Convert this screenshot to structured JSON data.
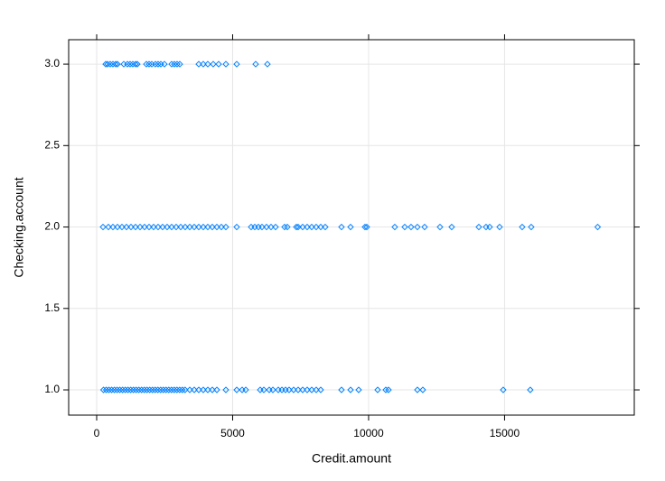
{
  "chart_data": {
    "type": "scatter",
    "xlabel": "Credit.amount",
    "ylabel": "Checking.account",
    "xlim": [
      -1030,
      19770
    ],
    "ylim": [
      0.845,
      3.15
    ],
    "xticks": [
      0,
      5000,
      10000,
      15000
    ],
    "yticks": [
      {
        "value": 1,
        "label": "1.0"
      },
      {
        "value": 1.5,
        "label": "1.5"
      },
      {
        "value": 2,
        "label": "2.0"
      },
      {
        "value": 2.5,
        "label": "2.5"
      },
      {
        "value": 3,
        "label": "3.0"
      }
    ],
    "grid": true,
    "series": [
      {
        "color": "#0080ff",
        "x": [
          250,
          350,
          450,
          550,
          650,
          750,
          850,
          950,
          1050,
          1150,
          1250,
          1350,
          1450,
          1550,
          1650,
          1750,
          1850,
          1950,
          2050,
          2150,
          2250,
          2350,
          2450,
          2550,
          2650,
          2750,
          2850,
          2950,
          3050,
          3150,
          3250,
          3422,
          3588,
          3754,
          3920,
          4086,
          4252,
          4419,
          4751,
          5150,
          5349,
          5482,
          6013,
          6146,
          6346,
          6479,
          6678,
          6811,
          6944,
          7076,
          7242,
          7409,
          7575,
          7741,
          7907,
          8073,
          8239,
          9003,
          9336,
          9634,
          10332,
          10631,
          10731,
          11794,
          11993,
          14950,
          15945
        ],
        "y": [
          1,
          1,
          1,
          1,
          1,
          1,
          1,
          1,
          1,
          1,
          1,
          1,
          1,
          1,
          1,
          1,
          1,
          1,
          1,
          1,
          1,
          1,
          1,
          1,
          1,
          1,
          1,
          1,
          1,
          1,
          1,
          1,
          1,
          1,
          1,
          1,
          1,
          1,
          1,
          1,
          1,
          1,
          1,
          1,
          1,
          1,
          1,
          1,
          1,
          1,
          1,
          1,
          1,
          1,
          1,
          1,
          1,
          1,
          1,
          1,
          1,
          1,
          1,
          1,
          1,
          1,
          1
        ]
      },
      {
        "color": "#0080ff",
        "x": [
          233,
          432,
          598,
          764,
          930,
          1096,
          1262,
          1429,
          1595,
          1761,
          1927,
          2093,
          2259,
          2425,
          2591,
          2757,
          2924,
          3090,
          3256,
          3422,
          3588,
          3754,
          3920,
          4086,
          4252,
          4419,
          4585,
          4751,
          5150,
          5681,
          5814,
          5947,
          6080,
          6246,
          6412,
          6578,
          6910,
          7010,
          7342,
          7409,
          7575,
          7741,
          7907,
          8073,
          8239,
          8405,
          9003,
          9336,
          9867,
          9934,
          10963,
          11329,
          11561,
          11794,
          12060,
          12625,
          13056,
          14053,
          14319,
          14452,
          14817,
          15648,
          15980,
          18424
        ],
        "y": [
          2,
          2,
          2,
          2,
          2,
          2,
          2,
          2,
          2,
          2,
          2,
          2,
          2,
          2,
          2,
          2,
          2,
          2,
          2,
          2,
          2,
          2,
          2,
          2,
          2,
          2,
          2,
          2,
          2,
          2,
          2,
          2,
          2,
          2,
          2,
          2,
          2,
          2,
          2,
          2,
          2,
          2,
          2,
          2,
          2,
          2,
          2,
          2,
          2,
          2,
          2,
          2,
          2,
          2,
          2,
          2,
          2,
          2,
          2,
          2,
          2,
          2,
          2,
          2
        ]
      },
      {
        "color": "#0080ff",
        "x": [
          332,
          399,
          498,
          598,
          698,
          764,
          997,
          1130,
          1229,
          1329,
          1429,
          1495,
          1827,
          1927,
          2027,
          2159,
          2259,
          2359,
          2492,
          2757,
          2857,
          2957,
          3056,
          3754,
          3920,
          4086,
          4286,
          4485,
          4751,
          5150,
          5847,
          6279
        ],
        "y": [
          3,
          3,
          3,
          3,
          3,
          3,
          3,
          3,
          3,
          3,
          3,
          3,
          3,
          3,
          3,
          3,
          3,
          3,
          3,
          3,
          3,
          3,
          3,
          3,
          3,
          3,
          3,
          3,
          3,
          3,
          3,
          3
        ]
      }
    ]
  }
}
